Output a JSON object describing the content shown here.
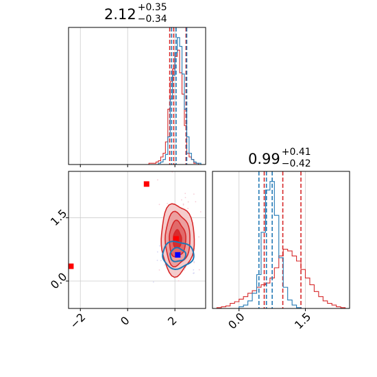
{
  "chart_data": [
    {
      "type": "histogram",
      "panel": "top-left",
      "title": {
        "value": "2.12",
        "plus": "+0.35",
        "minus": "−0.34"
      },
      "xlim": [
        -2.5,
        3.3
      ],
      "grid": true,
      "series": [
        {
          "color": "#d62728",
          "quantiles": [
            1.78,
            1.95,
            2.47
          ],
          "bin_edges": [
            0.7,
            0.8,
            0.9,
            1.0,
            1.1,
            1.2,
            1.3,
            1.4,
            1.5,
            1.6,
            1.7,
            1.8,
            1.9,
            2.0,
            2.1,
            2.2,
            2.3,
            2.4,
            2.5,
            2.6,
            2.7,
            2.8,
            2.9,
            3.0,
            3.1,
            3.2,
            3.3
          ],
          "counts": [
            0,
            0,
            1,
            1,
            1,
            2,
            3,
            6,
            9,
            18,
            44,
            66,
            76,
            86,
            91,
            73,
            56,
            31,
            9,
            6,
            4,
            1,
            1,
            0,
            0,
            0
          ]
        },
        {
          "color": "#1f77b4",
          "quantiles": [
            1.86,
            2.05,
            2.5
          ],
          "bin_edges": [
            0.7,
            0.8,
            0.9,
            1.0,
            1.1,
            1.2,
            1.3,
            1.4,
            1.5,
            1.6,
            1.7,
            1.8,
            1.9,
            2.0,
            2.1,
            2.2,
            2.3,
            2.4,
            2.5,
            2.6,
            2.7,
            2.8,
            2.9,
            3.0,
            3.1,
            3.2,
            3.3
          ],
          "counts": [
            0,
            0,
            0,
            0,
            0,
            0,
            1,
            2,
            4,
            8,
            22,
            52,
            71,
            89,
            101,
            94,
            72,
            44,
            22,
            9,
            4,
            2,
            1,
            1,
            0,
            0
          ]
        }
      ]
    },
    {
      "type": "histogram",
      "panel": "bottom-right",
      "title": {
        "value": "0.99",
        "plus": "+0.41",
        "minus": "−0.42"
      },
      "xlim": [
        -0.6,
        2.5
      ],
      "grid": true,
      "xticks": [
        {
          "value": 0.0,
          "label": "0.0"
        },
        {
          "value": 1.5,
          "label": "1.5"
        }
      ],
      "series": [
        {
          "color": "#d62728",
          "quantiles": [
            0.57,
            0.99,
            1.4
          ],
          "bin_edges": [
            -0.6,
            -0.5,
            -0.4,
            -0.3,
            -0.2,
            -0.1,
            0.0,
            0.1,
            0.2,
            0.3,
            0.4,
            0.5,
            0.6,
            0.7,
            0.8,
            0.9,
            1.0,
            1.1,
            1.2,
            1.3,
            1.4,
            1.5,
            1.6,
            1.7,
            1.8,
            1.9,
            2.0,
            2.1,
            2.2,
            2.3,
            2.4,
            2.5
          ],
          "counts": [
            0,
            1,
            2,
            3,
            6,
            8,
            11,
            14,
            18,
            21,
            25,
            28,
            30,
            36,
            48,
            62,
            70,
            68,
            62,
            56,
            46,
            36,
            28,
            20,
            14,
            9,
            6,
            4,
            2,
            1,
            0
          ]
        },
        {
          "color": "#1f77b4",
          "quantiles": [
            0.45,
            0.62,
            0.75
          ],
          "bin_edges": [
            -0.6,
            -0.5,
            -0.4,
            -0.3,
            -0.2,
            -0.1,
            0.0,
            0.1,
            0.2,
            0.3,
            0.4,
            0.5,
            0.6,
            0.7,
            0.8,
            0.9,
            1.0,
            1.1,
            1.2,
            1.3,
            1.4,
            1.5,
            1.6,
            1.7,
            1.8,
            1.9,
            2.0,
            2.1,
            2.2,
            2.3,
            2.4,
            2.5
          ],
          "counts": [
            0,
            0,
            0,
            0,
            0,
            0,
            2,
            4,
            9,
            18,
            40,
            90,
            140,
            150,
            110,
            60,
            25,
            10,
            4,
            1,
            0,
            0,
            0,
            0,
            0,
            0,
            0,
            0,
            0,
            0,
            0
          ]
        }
      ]
    },
    {
      "type": "contour",
      "panel": "bottom-left",
      "xlim": [
        -2.5,
        3.3
      ],
      "ylim": [
        -0.65,
        2.6
      ],
      "grid": true,
      "xticks": [
        {
          "value": -2,
          "label": "−2"
        },
        {
          "value": 0,
          "label": "0"
        },
        {
          "value": 2,
          "label": "2"
        }
      ],
      "yticks": [
        {
          "value": 0.0,
          "label": "0.0"
        },
        {
          "value": 1.5,
          "label": "1.5"
        }
      ],
      "series": [
        {
          "color": "#d62728",
          "filled": true,
          "center": [
            2.1,
            0.99
          ],
          "sigma": [
            0.35,
            0.42
          ],
          "levels": [
            0.5,
            1.0,
            1.5,
            2.0
          ],
          "marker": {
            "shape": "square",
            "color": "#ff0000",
            "x": 2.05,
            "y": 1.0
          }
        },
        {
          "color": "#1f77b4",
          "filled": false,
          "center": [
            2.12,
            0.62
          ],
          "sigma": [
            0.33,
            0.16
          ],
          "levels": [
            1.0,
            2.0
          ],
          "marker": {
            "shape": "square",
            "color": "#0000ff",
            "x": 2.12,
            "y": 0.62
          }
        }
      ],
      "extra_markers": [
        {
          "shape": "square",
          "color": "#ff0000",
          "x": 0.8,
          "y": 2.3
        },
        {
          "shape": "square",
          "color": "#ff0000",
          "x": -2.4,
          "y": 0.35
        }
      ]
    }
  ]
}
